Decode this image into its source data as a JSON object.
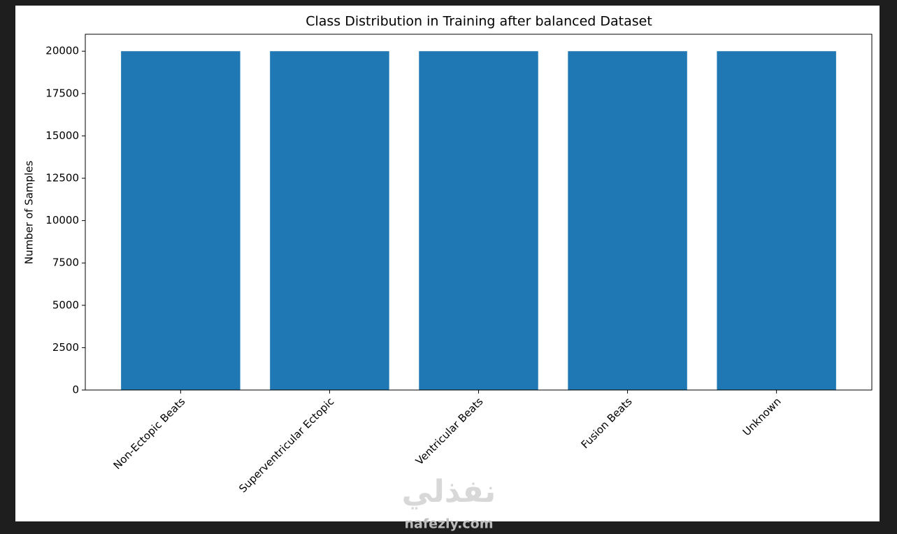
{
  "chart_data": {
    "type": "bar",
    "title": "Class Distribution in Training after balanced Dataset",
    "y_label": "Number of Samples",
    "categories": [
      "Non-Ectopic Beats",
      "Superventricular Ectopic",
      "Ventricular Beats",
      "Fusion Beats",
      "Unknown"
    ],
    "values": [
      20000,
      20000,
      20000,
      20000,
      20000
    ],
    "color": "#1f77b4",
    "ylim": [
      0,
      21000
    ],
    "yticks": [
      0,
      2500,
      5000,
      7500,
      10000,
      12500,
      15000,
      17500,
      20000
    ],
    "grid": false
  },
  "watermark": {
    "logo": "نفذلي",
    "site": "nafezly.com"
  }
}
